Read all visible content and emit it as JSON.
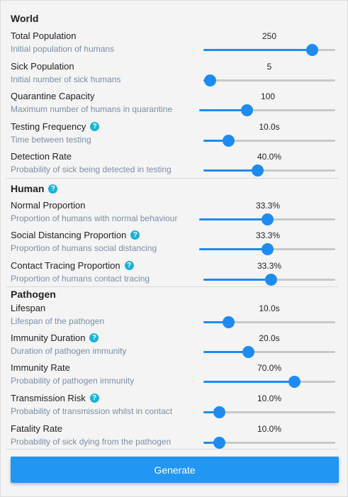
{
  "sections": {
    "world": "World",
    "human": "Human",
    "pathogen": "Pathogen"
  },
  "params": [
    {
      "key": "total-population",
      "label": "Total Population",
      "desc": "Initial population of humans",
      "value": "250",
      "fraction": 0.82,
      "help": false
    },
    {
      "key": "sick-population",
      "label": "Sick Population",
      "desc": "Initial number of sick humans",
      "value": "5",
      "fraction": 0.05,
      "help": false
    },
    {
      "key": "quarantine-capacity",
      "label": "Quarantine Capacity",
      "desc": "Maximum number of humans in quarantine",
      "value": "100",
      "fraction": 0.35,
      "help": false
    },
    {
      "key": "testing-frequency",
      "label": "Testing Frequency",
      "desc": "Time between testing",
      "value": "10.0s",
      "fraction": 0.19,
      "help": true
    },
    {
      "key": "detection-rate",
      "label": "Detection Rate",
      "desc": "Probability of sick being detected in testing",
      "value": "40.0%",
      "fraction": 0.41,
      "help": false
    },
    {
      "key": "normal-proportion",
      "label": "Normal Proportion",
      "desc": "Proportion of humans with normal behaviour",
      "value": "33.3%",
      "fraction": 0.5,
      "help": false
    },
    {
      "key": "social-distancing-proportion",
      "label": "Social Distancing Proportion",
      "desc": "Proportion of humans social distancing",
      "value": "33.3%",
      "fraction": 0.5,
      "help": true
    },
    {
      "key": "contact-tracing-proportion",
      "label": "Contact Tracing Proportion",
      "desc": "Proportion of humans contact tracing",
      "value": "33.3%",
      "fraction": 0.51,
      "help": true
    },
    {
      "key": "lifespan",
      "label": "Lifespan",
      "desc": "Lifespan of the pathogen",
      "value": "10.0s",
      "fraction": 0.19,
      "help": false
    },
    {
      "key": "immunity-duration",
      "label": "Immunity Duration",
      "desc": "Duration of pathogen immunity",
      "value": "20.0s",
      "fraction": 0.34,
      "help": true
    },
    {
      "key": "immunity-rate",
      "label": "Immunity Rate",
      "desc": "Probability of pathogen immunity",
      "value": "70.0%",
      "fraction": 0.69,
      "help": false
    },
    {
      "key": "transmission-risk",
      "label": "Transmission Risk",
      "desc": "Probability of transmission whilst in contact",
      "value": "10.0%",
      "fraction": 0.12,
      "help": true
    },
    {
      "key": "fatality-rate",
      "label": "Fatality Rate",
      "desc": "Probability of sick dying from the pathogen",
      "value": "10.0%",
      "fraction": 0.12,
      "help": false
    }
  ],
  "help_glyph": "?",
  "generate_label": "Generate",
  "accent_color": "#1e8bf0",
  "help_color": "#1ab3d6"
}
